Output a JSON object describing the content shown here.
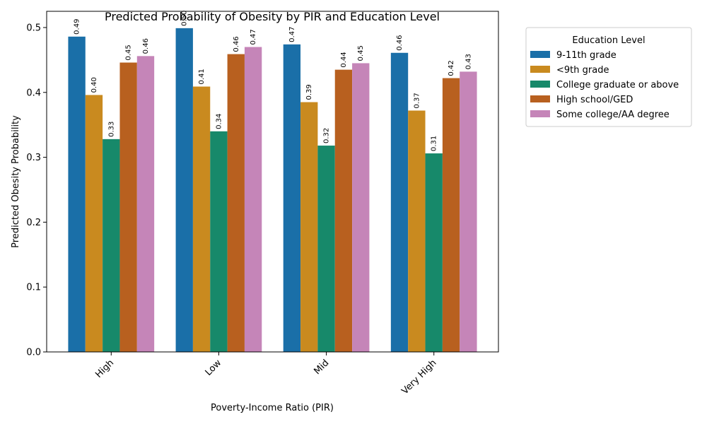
{
  "chart_data": {
    "type": "bar",
    "title": "Predicted Probability of Obesity by PIR and Education Level",
    "xlabel": "Poverty-Income Ratio (PIR)",
    "ylabel": "Predicted Obesity Probability",
    "ylim": [
      0,
      0.525
    ],
    "yticks": [
      "0.0",
      "0.1",
      "0.2",
      "0.3",
      "0.4",
      "0.5"
    ],
    "ytick_values": [
      0,
      0.1,
      0.2,
      0.3,
      0.4,
      0.5
    ],
    "categories": [
      "High",
      "Low",
      "Mid",
      "Very High"
    ],
    "legend": {
      "title": "Education Level",
      "placement": "outside-right"
    },
    "grid": false,
    "series": [
      {
        "name": "9-11th grade",
        "color": "#1a6fa8",
        "values": [
          0.486,
          0.499,
          0.474,
          0.461
        ],
        "labels": [
          "0.49",
          "0.50",
          "0.47",
          "0.46"
        ]
      },
      {
        "name": "<9th grade",
        "color": "#c98a1f",
        "values": [
          0.396,
          0.409,
          0.385,
          0.372
        ],
        "labels": [
          "0.40",
          "0.41",
          "0.39",
          "0.37"
        ]
      },
      {
        "name": "College graduate or above",
        "color": "#17896a",
        "values": [
          0.328,
          0.34,
          0.318,
          0.306
        ],
        "labels": [
          "0.33",
          "0.34",
          "0.32",
          "0.31"
        ]
      },
      {
        "name": "High school/GED",
        "color": "#b8601f",
        "values": [
          0.446,
          0.459,
          0.435,
          0.422
        ],
        "labels": [
          "0.45",
          "0.46",
          "0.44",
          "0.42"
        ]
      },
      {
        "name": "Some college/AA degree",
        "color": "#c585b8",
        "values": [
          0.456,
          0.47,
          0.445,
          0.432
        ],
        "labels": [
          "0.46",
          "0.47",
          "0.45",
          "0.43"
        ]
      }
    ]
  }
}
